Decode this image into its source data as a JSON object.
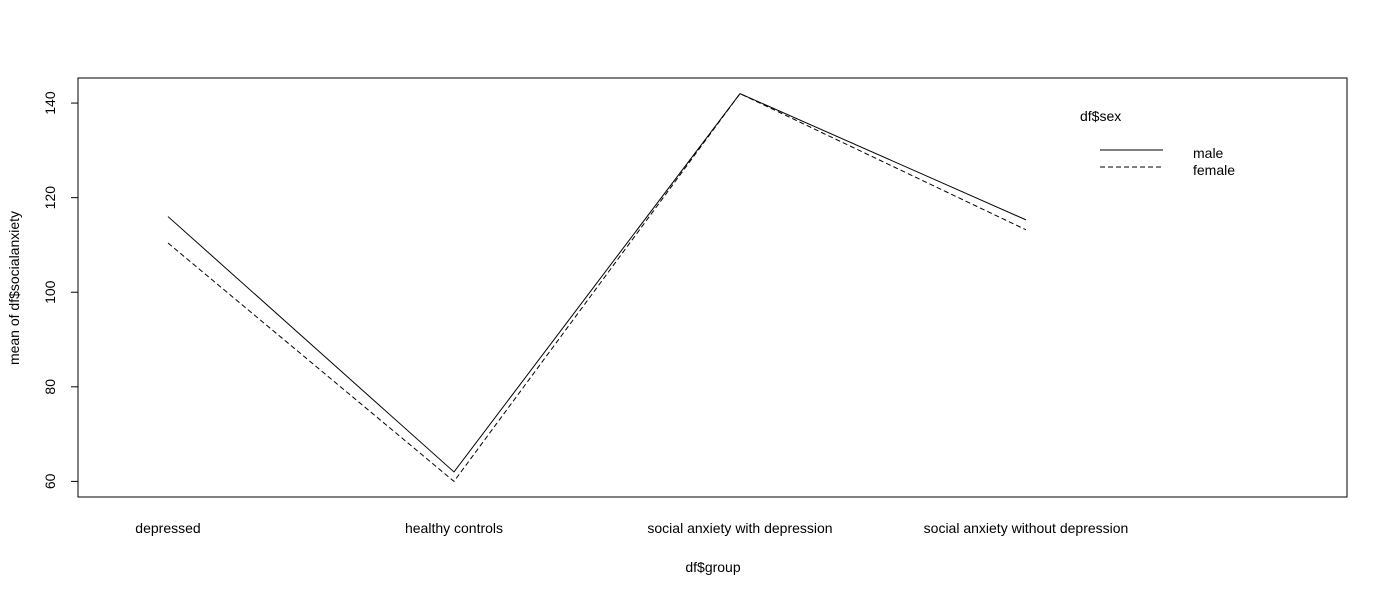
{
  "chart_data": {
    "type": "line",
    "title": "",
    "xlabel": "df$group",
    "ylabel": "mean of  df$socialanxiety",
    "categories": [
      "depressed",
      "healthy controls",
      "social anxiety with depression",
      "social anxiety without depression"
    ],
    "ylim": [
      56.7,
      145.3
    ],
    "yticks": [
      60,
      80,
      100,
      120,
      140
    ],
    "grid": false,
    "legend": {
      "title": "df$sex",
      "placement": "top-right",
      "entries": [
        "male",
        "female"
      ]
    },
    "series": [
      {
        "name": "male",
        "line_style": "solid",
        "values": [
          116.0,
          62.0,
          142.0,
          115.3
        ]
      },
      {
        "name": "female",
        "line_style": "dashed",
        "values": [
          110.4,
          60.0,
          142.0,
          113.2
        ]
      }
    ],
    "colors": {
      "line": "#000000",
      "frame": "#000000",
      "background": "#ffffff"
    }
  }
}
